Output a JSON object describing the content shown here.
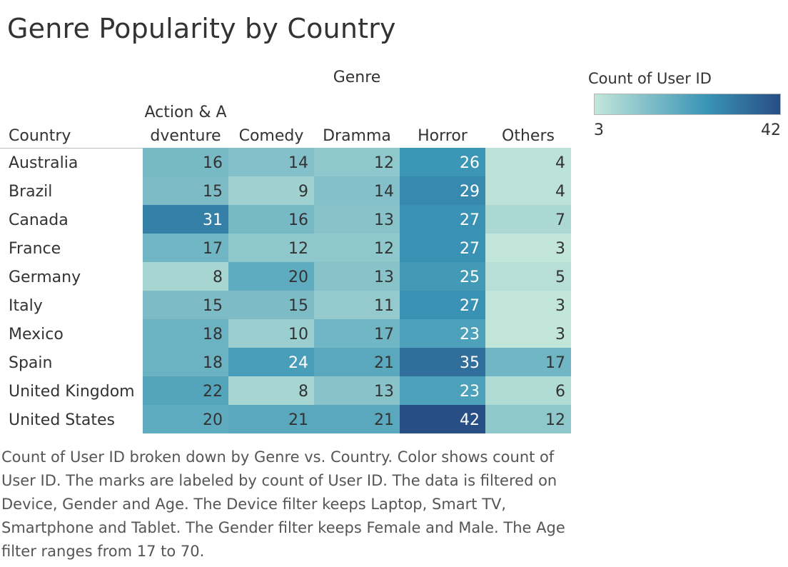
{
  "chart_data": {
    "type": "heatmap",
    "title": "Genre Popularity by Country",
    "column_header": "Genre",
    "row_header": "Country",
    "columns": [
      {
        "line1": "Action & A",
        "line2": "dventure"
      },
      {
        "line1": "",
        "line2": "Comedy"
      },
      {
        "line1": "",
        "line2": "Dramma"
      },
      {
        "line1": "",
        "line2": "Horror"
      },
      {
        "line1": "",
        "line2": "Others"
      }
    ],
    "rows": [
      "Australia",
      "Brazil",
      "Canada",
      "France",
      "Germany",
      "Italy",
      "Mexico",
      "Spain",
      "United Kingdom",
      "United States"
    ],
    "values": [
      [
        16,
        14,
        12,
        26,
        4
      ],
      [
        15,
        9,
        14,
        29,
        4
      ],
      [
        31,
        16,
        13,
        27,
        7
      ],
      [
        17,
        12,
        12,
        27,
        3
      ],
      [
        8,
        20,
        13,
        25,
        5
      ],
      [
        15,
        15,
        11,
        27,
        3
      ],
      [
        18,
        10,
        17,
        23,
        3
      ],
      [
        18,
        24,
        21,
        35,
        17
      ],
      [
        22,
        8,
        13,
        23,
        6
      ],
      [
        20,
        21,
        21,
        42,
        12
      ]
    ],
    "legend": {
      "title": "Count of User ID",
      "min": 3,
      "max": 42,
      "min_label": "3",
      "max_label": "42",
      "color_low": "#c3e6da",
      "color_mid": "#3a95b5",
      "color_high": "#284e86"
    },
    "caption": "Count of User ID broken down by Genre vs. Country.  Color shows count of User ID.  The marks are labeled by count of User ID. The data is filtered on Device, Gender and Age. The Device filter keeps Laptop, Smart TV, Smartphone and Tablet. The Gender filter keeps Female and Male. The Age filter ranges from 17 to 70."
  }
}
